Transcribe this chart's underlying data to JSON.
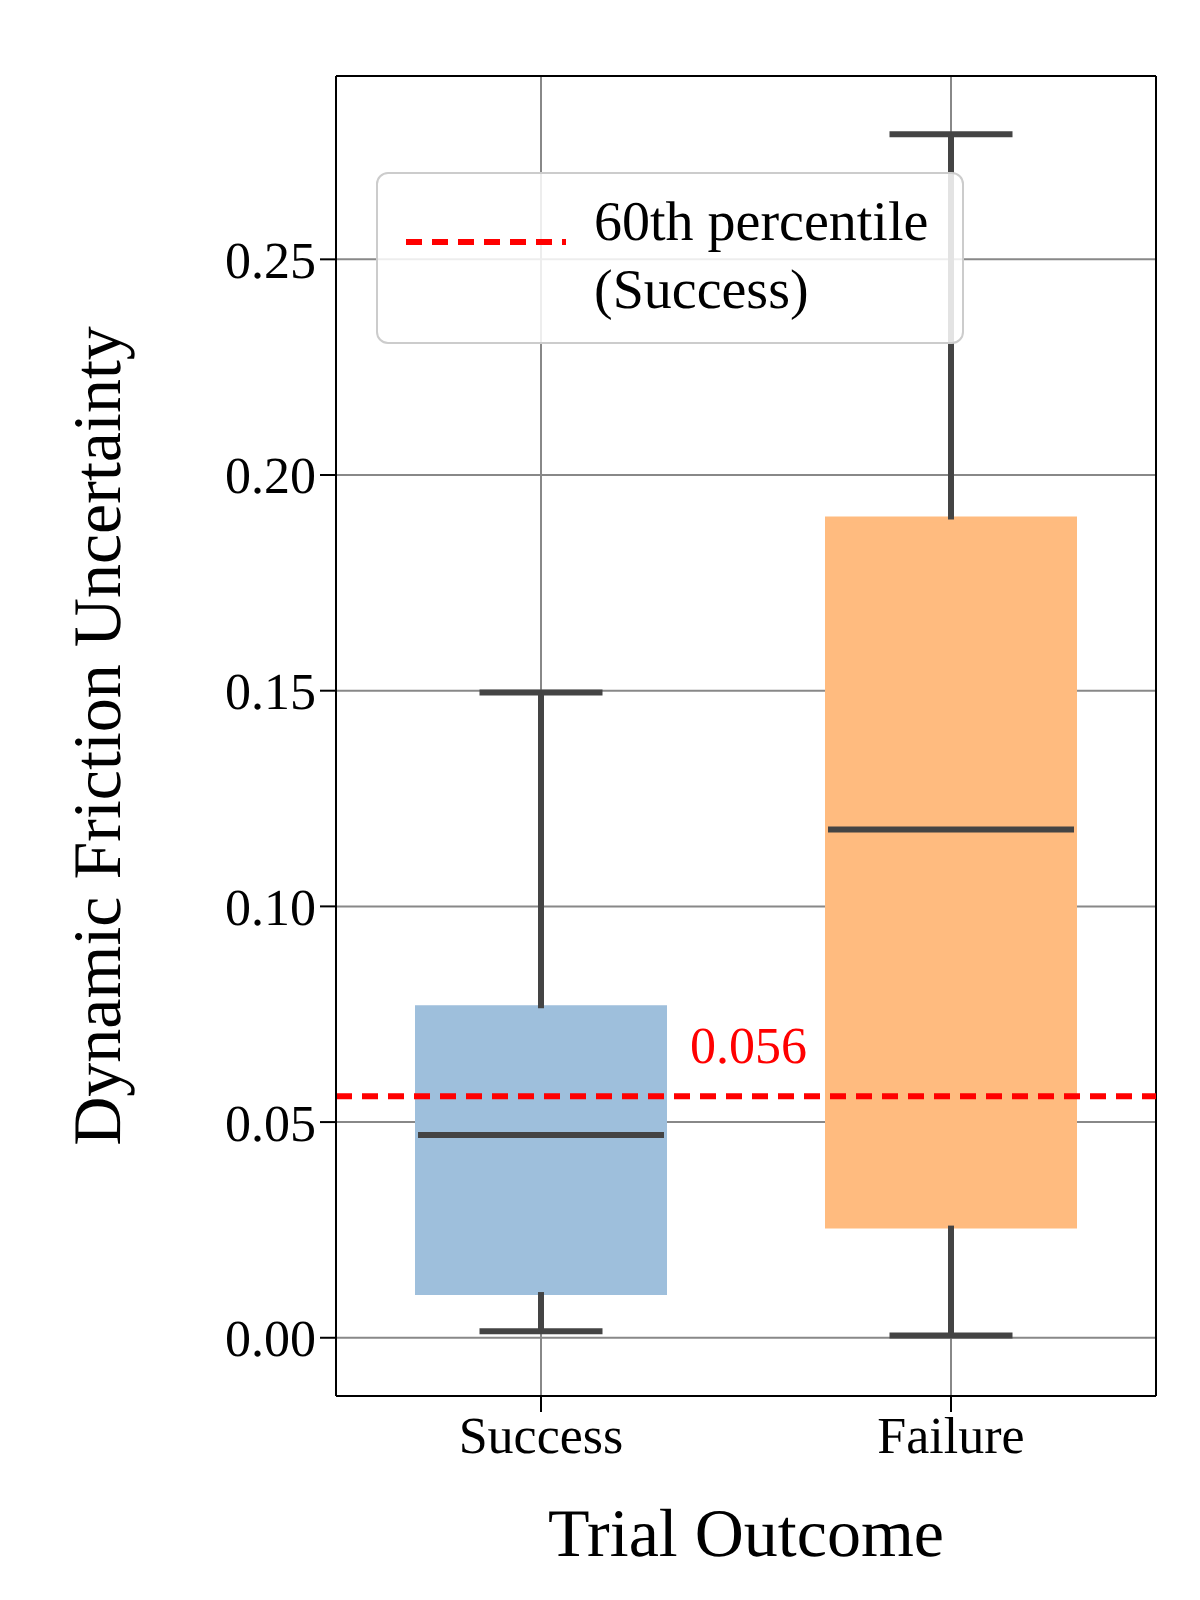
{
  "chart_data": {
    "type": "box",
    "xlabel": "Trial Outcome",
    "ylabel": "Dynamic Friction Uncertainty",
    "categories": [
      "Success",
      "Failure"
    ],
    "colors": [
      "#9ebfdc",
      "#ffbb7f"
    ],
    "boxes": [
      {
        "low": 0.0015,
        "q1": 0.0106,
        "median": 0.047,
        "q3": 0.0764,
        "high": 0.1496
      },
      {
        "low": 0.0005,
        "q1": 0.026,
        "median": 0.1178,
        "q3": 0.1897,
        "high": 0.279
      }
    ],
    "ylim": [
      -0.0135,
      0.2925
    ],
    "yticks": [
      {
        "value": 0,
        "label": "0.00"
      },
      {
        "value": 0.05,
        "label": "0.05"
      },
      {
        "value": 0.1,
        "label": "0.10"
      },
      {
        "value": 0.15,
        "label": "0.15"
      },
      {
        "value": 0.2,
        "label": "0.20"
      },
      {
        "value": 0.25,
        "label": "0.25"
      }
    ],
    "ref_lines": [
      {
        "axis": "y",
        "value": 0.056,
        "label": "60th percentile (Success)",
        "color": "#ff0000",
        "line_style": "dashed"
      }
    ],
    "annotations": [
      {
        "text": "0.056",
        "x": "Success",
        "y": 0.056
      }
    ],
    "grid": true,
    "legend": "top left"
  }
}
